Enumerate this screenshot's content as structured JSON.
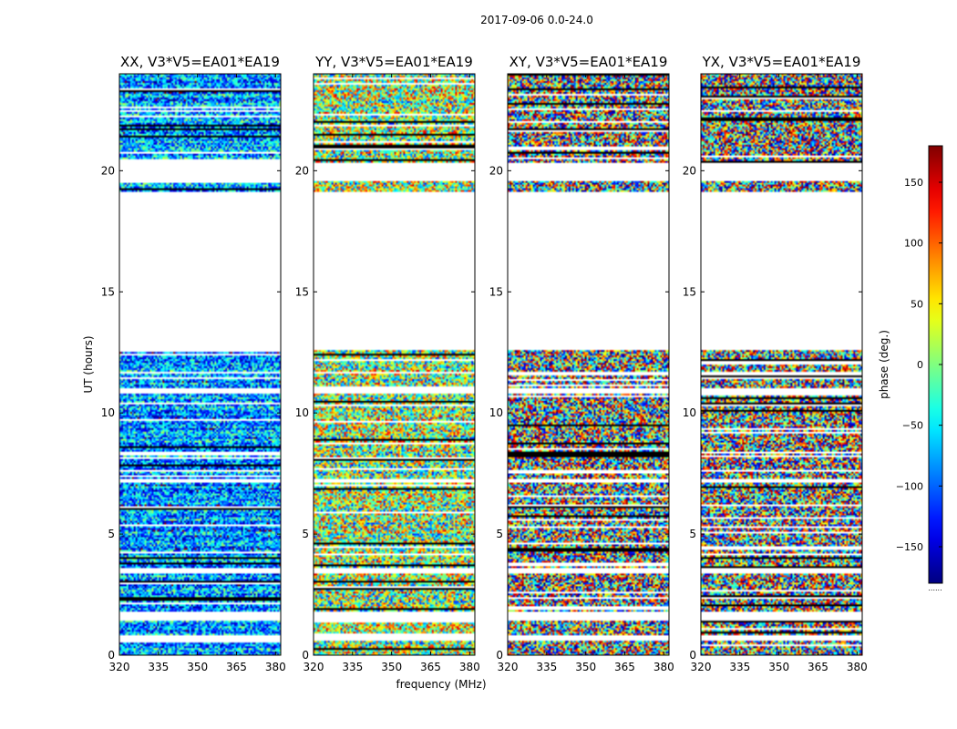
{
  "chart_data": {
    "type": "heatmap",
    "title": "2017-09-06 0.0-24.0",
    "xlabel": "frequency (MHz)",
    "ylabel": "UT (hours)",
    "xlim": [
      320,
      382
    ],
    "ylim": [
      0,
      24
    ],
    "xticks": [
      320,
      335,
      350,
      365,
      380
    ],
    "yticks": [
      0,
      5,
      10,
      15,
      20
    ],
    "panels": [
      {
        "title": "XX, V3*V5=EA01*EA19",
        "polarization": "XX",
        "mean_phase": -80,
        "spread": 80
      },
      {
        "title": "YY, V3*V5=EA01*EA19",
        "polarization": "YY",
        "mean_phase": 10,
        "spread": 120
      },
      {
        "title": "XY, V3*V5=EA01*EA19",
        "polarization": "XY",
        "mean_phase": 0,
        "spread": 180
      },
      {
        "title": "YX, V3*V5=EA01*EA19",
        "polarization": "YX",
        "mean_phase": 0,
        "spread": 180
      }
    ],
    "data_intervals_ut": [
      [
        0,
        0.6
      ],
      [
        0.8,
        1.4
      ],
      [
        1.8,
        3.4
      ],
      [
        3.6,
        7.1
      ],
      [
        7.3,
        10.8
      ],
      [
        11.0,
        11.6
      ],
      [
        11.7,
        12.6
      ],
      [
        19.1,
        19.6
      ],
      [
        20.3,
        24.0
      ]
    ],
    "colorbar": {
      "label": "phase (deg.)",
      "range": [
        -180,
        180
      ],
      "ticks": [
        -150,
        -100,
        -50,
        0,
        50,
        100,
        150
      ],
      "tick_labels": [
        "−150",
        "−100",
        "−50",
        "0",
        "50",
        "100",
        "150"
      ],
      "colormap": "jet",
      "footnote": "......"
    }
  }
}
